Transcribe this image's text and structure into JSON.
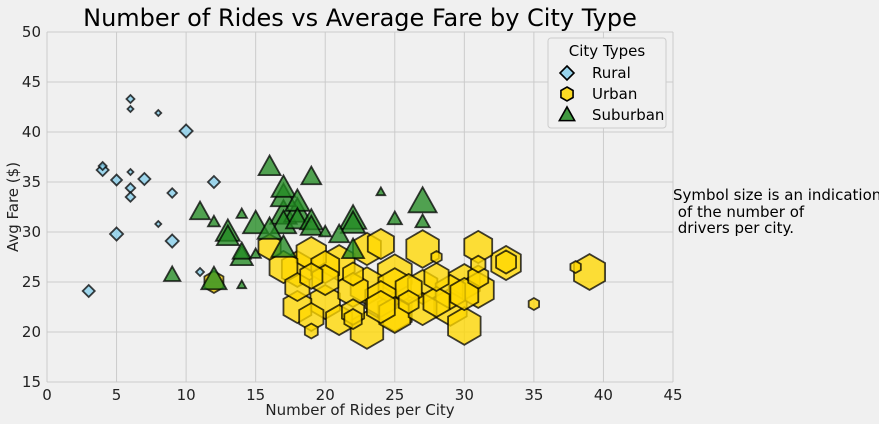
{
  "chart_data": {
    "type": "scatter",
    "title": "Number of Rides vs Average Fare by City Type",
    "xlabel": "Number of Rides per City",
    "ylabel": "Avg Fare ($)",
    "xlim": [
      0,
      45
    ],
    "ylim": [
      15,
      50
    ],
    "xticks": [
      0,
      5,
      10,
      15,
      20,
      25,
      30,
      35,
      40,
      45
    ],
    "yticks": [
      15,
      20,
      25,
      30,
      35,
      40,
      45,
      50
    ],
    "grid": true,
    "legend": {
      "title": "City Types",
      "placement": "top-right"
    },
    "annotation": "Symbol size is an indication\n of the number of\n drivers per city.",
    "series": [
      {
        "name": "Rural",
        "marker": "diamond",
        "color": "#87ceeb",
        "points": [
          {
            "x": 3,
            "y": 24.1,
            "s": 5
          },
          {
            "x": 4,
            "y": 36.2,
            "s": 5
          },
          {
            "x": 4,
            "y": 36.6,
            "s": 2
          },
          {
            "x": 5,
            "y": 35.2,
            "s": 4
          },
          {
            "x": 5,
            "y": 29.8,
            "s": 6
          },
          {
            "x": 6,
            "y": 43.3,
            "s": 2
          },
          {
            "x": 6,
            "y": 42.3,
            "s": 1
          },
          {
            "x": 6,
            "y": 34.4,
            "s": 3
          },
          {
            "x": 6,
            "y": 33.5,
            "s": 3
          },
          {
            "x": 6,
            "y": 36.0,
            "s": 1
          },
          {
            "x": 7,
            "y": 35.3,
            "s": 5
          },
          {
            "x": 8,
            "y": 41.9,
            "s": 1
          },
          {
            "x": 8,
            "y": 30.8,
            "s": 1
          },
          {
            "x": 9,
            "y": 33.9,
            "s": 3
          },
          {
            "x": 9,
            "y": 29.1,
            "s": 6
          },
          {
            "x": 10,
            "y": 40.1,
            "s": 6
          },
          {
            "x": 11,
            "y": 26.0,
            "s": 2
          },
          {
            "x": 12,
            "y": 35.0,
            "s": 5
          }
        ]
      },
      {
        "name": "Urban",
        "marker": "hexagon",
        "color": "#ffd700",
        "points": [
          {
            "x": 12,
            "y": 25.0,
            "s": 18
          },
          {
            "x": 16,
            "y": 28.5,
            "s": 25
          },
          {
            "x": 17,
            "y": 26.5,
            "s": 40
          },
          {
            "x": 18,
            "y": 26.3,
            "s": 50
          },
          {
            "x": 18,
            "y": 22.5,
            "s": 40
          },
          {
            "x": 18,
            "y": 24.5,
            "s": 30
          },
          {
            "x": 19,
            "y": 27.8,
            "s": 45
          },
          {
            "x": 19,
            "y": 25.6,
            "s": 25
          },
          {
            "x": 19,
            "y": 21.5,
            "s": 30
          },
          {
            "x": 19,
            "y": 20.1,
            "s": 8
          },
          {
            "x": 20,
            "y": 26.5,
            "s": 40
          },
          {
            "x": 20,
            "y": 23.0,
            "s": 45
          },
          {
            "x": 20,
            "y": 25.2,
            "s": 35
          },
          {
            "x": 21,
            "y": 26.9,
            "s": 50
          },
          {
            "x": 21,
            "y": 21.2,
            "s": 35
          },
          {
            "x": 22,
            "y": 24.2,
            "s": 45
          },
          {
            "x": 22,
            "y": 22.0,
            "s": 25
          },
          {
            "x": 22,
            "y": 25.8,
            "s": 20
          },
          {
            "x": 22,
            "y": 21.3,
            "s": 15
          },
          {
            "x": 23,
            "y": 28.3,
            "s": 40
          },
          {
            "x": 23,
            "y": 24.6,
            "s": 55
          },
          {
            "x": 23,
            "y": 20.2,
            "s": 55
          },
          {
            "x": 24,
            "y": 28.8,
            "s": 35
          },
          {
            "x": 24,
            "y": 23.3,
            "s": 50
          },
          {
            "x": 24,
            "y": 22.5,
            "s": 40
          },
          {
            "x": 25,
            "y": 25.8,
            "s": 60
          },
          {
            "x": 25,
            "y": 24.5,
            "s": 55
          },
          {
            "x": 25,
            "y": 22.0,
            "s": 60
          },
          {
            "x": 25,
            "y": 21.7,
            "s": 50
          },
          {
            "x": 26,
            "y": 24.3,
            "s": 35
          },
          {
            "x": 26,
            "y": 23.0,
            "s": 20
          },
          {
            "x": 27,
            "y": 28.3,
            "s": 55
          },
          {
            "x": 27,
            "y": 24.5,
            "s": 45
          },
          {
            "x": 27,
            "y": 22.3,
            "s": 40
          },
          {
            "x": 28,
            "y": 25.5,
            "s": 30
          },
          {
            "x": 28,
            "y": 23.0,
            "s": 35
          },
          {
            "x": 28,
            "y": 27.5,
            "s": 5
          },
          {
            "x": 29,
            "y": 24.0,
            "s": 45
          },
          {
            "x": 29,
            "y": 22.5,
            "s": 55
          },
          {
            "x": 30,
            "y": 25.0,
            "s": 50
          },
          {
            "x": 30,
            "y": 20.6,
            "s": 55
          },
          {
            "x": 30,
            "y": 23.8,
            "s": 40
          },
          {
            "x": 31,
            "y": 28.5,
            "s": 40
          },
          {
            "x": 31,
            "y": 26.8,
            "s": 10
          },
          {
            "x": 31,
            "y": 24.2,
            "s": 50
          },
          {
            "x": 31,
            "y": 25.5,
            "s": 20
          },
          {
            "x": 33,
            "y": 26.9,
            "s": 45
          },
          {
            "x": 33,
            "y": 27.0,
            "s": 20
          },
          {
            "x": 35,
            "y": 22.8,
            "s": 5
          },
          {
            "x": 38,
            "y": 26.5,
            "s": 5
          },
          {
            "x": 39,
            "y": 26.0,
            "s": 50
          }
        ]
      },
      {
        "name": "Suburban",
        "marker": "triangle",
        "color": "#228b22",
        "points": [
          {
            "x": 9,
            "y": 25.7,
            "s": 8
          },
          {
            "x": 11,
            "y": 32.0,
            "s": 12
          },
          {
            "x": 12,
            "y": 31.0,
            "s": 4
          },
          {
            "x": 12,
            "y": 25.2,
            "s": 20
          },
          {
            "x": 13,
            "y": 30.0,
            "s": 18
          },
          {
            "x": 13,
            "y": 29.5,
            "s": 15
          },
          {
            "x": 14,
            "y": 31.8,
            "s": 3
          },
          {
            "x": 14,
            "y": 28.0,
            "s": 10
          },
          {
            "x": 14,
            "y": 27.5,
            "s": 15
          },
          {
            "x": 14,
            "y": 24.7,
            "s": 2
          },
          {
            "x": 15,
            "y": 30.8,
            "s": 20
          },
          {
            "x": 15,
            "y": 27.8,
            "s": 3
          },
          {
            "x": 16,
            "y": 36.5,
            "s": 15
          },
          {
            "x": 16,
            "y": 30.2,
            "s": 18
          },
          {
            "x": 17,
            "y": 34.4,
            "s": 18
          },
          {
            "x": 17,
            "y": 33.5,
            "s": 20
          },
          {
            "x": 17,
            "y": 31.8,
            "s": 22
          },
          {
            "x": 17,
            "y": 30.8,
            "s": 20
          },
          {
            "x": 17,
            "y": 28.4,
            "s": 18
          },
          {
            "x": 18,
            "y": 33.0,
            "s": 18
          },
          {
            "x": 18,
            "y": 32.0,
            "s": 22
          },
          {
            "x": 18,
            "y": 31.2,
            "s": 16
          },
          {
            "x": 19,
            "y": 35.5,
            "s": 12
          },
          {
            "x": 19,
            "y": 31.1,
            "s": 16
          },
          {
            "x": 19,
            "y": 30.5,
            "s": 14
          },
          {
            "x": 20,
            "y": 30.0,
            "s": 4
          },
          {
            "x": 21,
            "y": 29.7,
            "s": 12
          },
          {
            "x": 22,
            "y": 31.3,
            "s": 22
          },
          {
            "x": 22,
            "y": 30.8,
            "s": 18
          },
          {
            "x": 22,
            "y": 28.2,
            "s": 15
          },
          {
            "x": 24,
            "y": 34.0,
            "s": 2
          },
          {
            "x": 25,
            "y": 31.3,
            "s": 6
          },
          {
            "x": 27,
            "y": 33.0,
            "s": 25
          },
          {
            "x": 27,
            "y": 31.0,
            "s": 6
          }
        ]
      }
    ]
  }
}
